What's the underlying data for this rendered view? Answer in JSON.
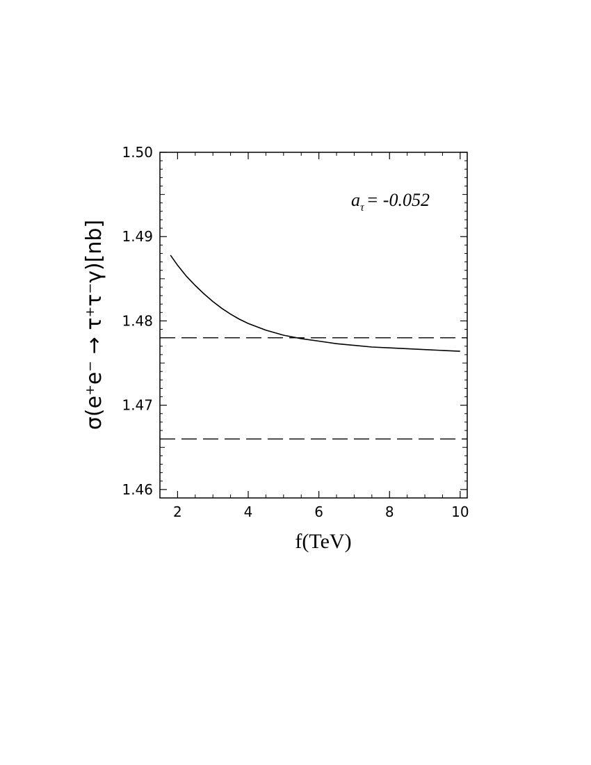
{
  "chart_data": {
    "type": "line",
    "xlabel": "f(TeV)",
    "ylabel": "σ(e⁺e⁻ → τ⁺τ⁻γ)[nb]",
    "xlim": [
      1.5,
      10.2
    ],
    "ylim": [
      1.459,
      1.5
    ],
    "x_ticks": [
      2,
      4,
      6,
      8,
      10
    ],
    "x_tick_labels": [
      "2",
      "4",
      "6",
      "8",
      "10"
    ],
    "y_ticks": [
      1.46,
      1.47,
      1.48,
      1.49,
      1.5
    ],
    "y_tick_labels": [
      "1.46",
      "1.47",
      "1.48",
      "1.49",
      "1.50"
    ],
    "annotation": {
      "symbol": "a",
      "subscript": "τ",
      "value_text": "= -0.052"
    },
    "series": [
      {
        "style": "solid",
        "x": [
          1.8,
          2.0,
          2.25,
          2.5,
          2.75,
          3.0,
          3.25,
          3.5,
          3.75,
          4.0,
          4.5,
          5.0,
          5.5,
          6.0,
          6.5,
          7.0,
          7.5,
          8.0,
          8.5,
          9.0,
          9.5,
          10.0
        ],
        "y": [
          1.4878,
          1.4866,
          1.4853,
          1.4842,
          1.4832,
          1.4823,
          1.4815,
          1.4808,
          1.4802,
          1.4797,
          1.4789,
          1.4783,
          1.4779,
          1.4776,
          1.4773,
          1.4771,
          1.4769,
          1.4768,
          1.4767,
          1.4766,
          1.4765,
          1.4764
        ]
      }
    ],
    "reference_lines": [
      {
        "style": "dashed",
        "y": 1.478
      },
      {
        "style": "dashed",
        "y": 1.466
      }
    ],
    "grid": false,
    "legend": false
  }
}
